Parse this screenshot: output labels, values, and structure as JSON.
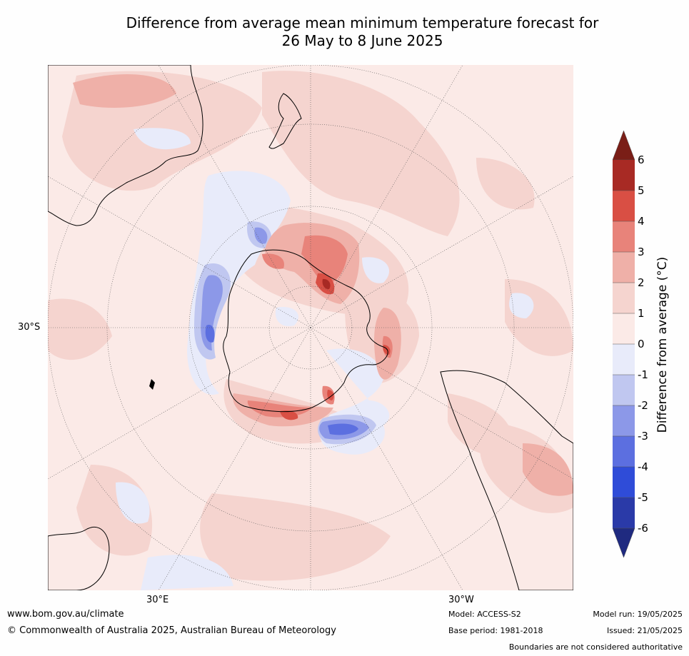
{
  "title_line1": "Difference from average mean minimum temperature forecast for",
  "title_line2": "26 May to 8 June 2025",
  "map": {
    "projection": "south-polar",
    "lat_label": "30°S",
    "lon_label_left": "30°E",
    "lon_label_right": "30°W"
  },
  "colorbar": {
    "title": "Difference from average (°C)",
    "ticks": [
      "6",
      "5",
      "4",
      "3",
      "2",
      "1",
      "0",
      "-1",
      "-2",
      "-3",
      "-4",
      "-5",
      "-6"
    ],
    "colors": {
      "above_6": "#7a1e17",
      "5_to_6": "#a82a24",
      "4_to_5": "#d94f44",
      "3_to_4": "#e8837a",
      "2_to_3": "#efb0a8",
      "1_to_2": "#f5d4cf",
      "0_to_1": "#fbeae7",
      "-1_to_0": "#e8ebfa",
      "-2_to_-1": "#c0c7f0",
      "-3_to_-2": "#8c98e8",
      "-4_to_-3": "#5c6fe0",
      "-5_to_-4": "#2f4cd8",
      "-6_to_-5": "#2a3aa8",
      "below_-6": "#1f2a80"
    }
  },
  "footer": {
    "website": "www.bom.gov.au/climate",
    "copyright": "© Commonwealth of Australia 2025, Australian Bureau of Meteorology",
    "model": "Model: ACCESS-S2",
    "base_period": "Base period: 1981-2018",
    "model_run": "Model run: 19/05/2025",
    "issued": "Issued: 21/05/2025",
    "disclaimer": "Boundaries are not considered authoritative"
  }
}
